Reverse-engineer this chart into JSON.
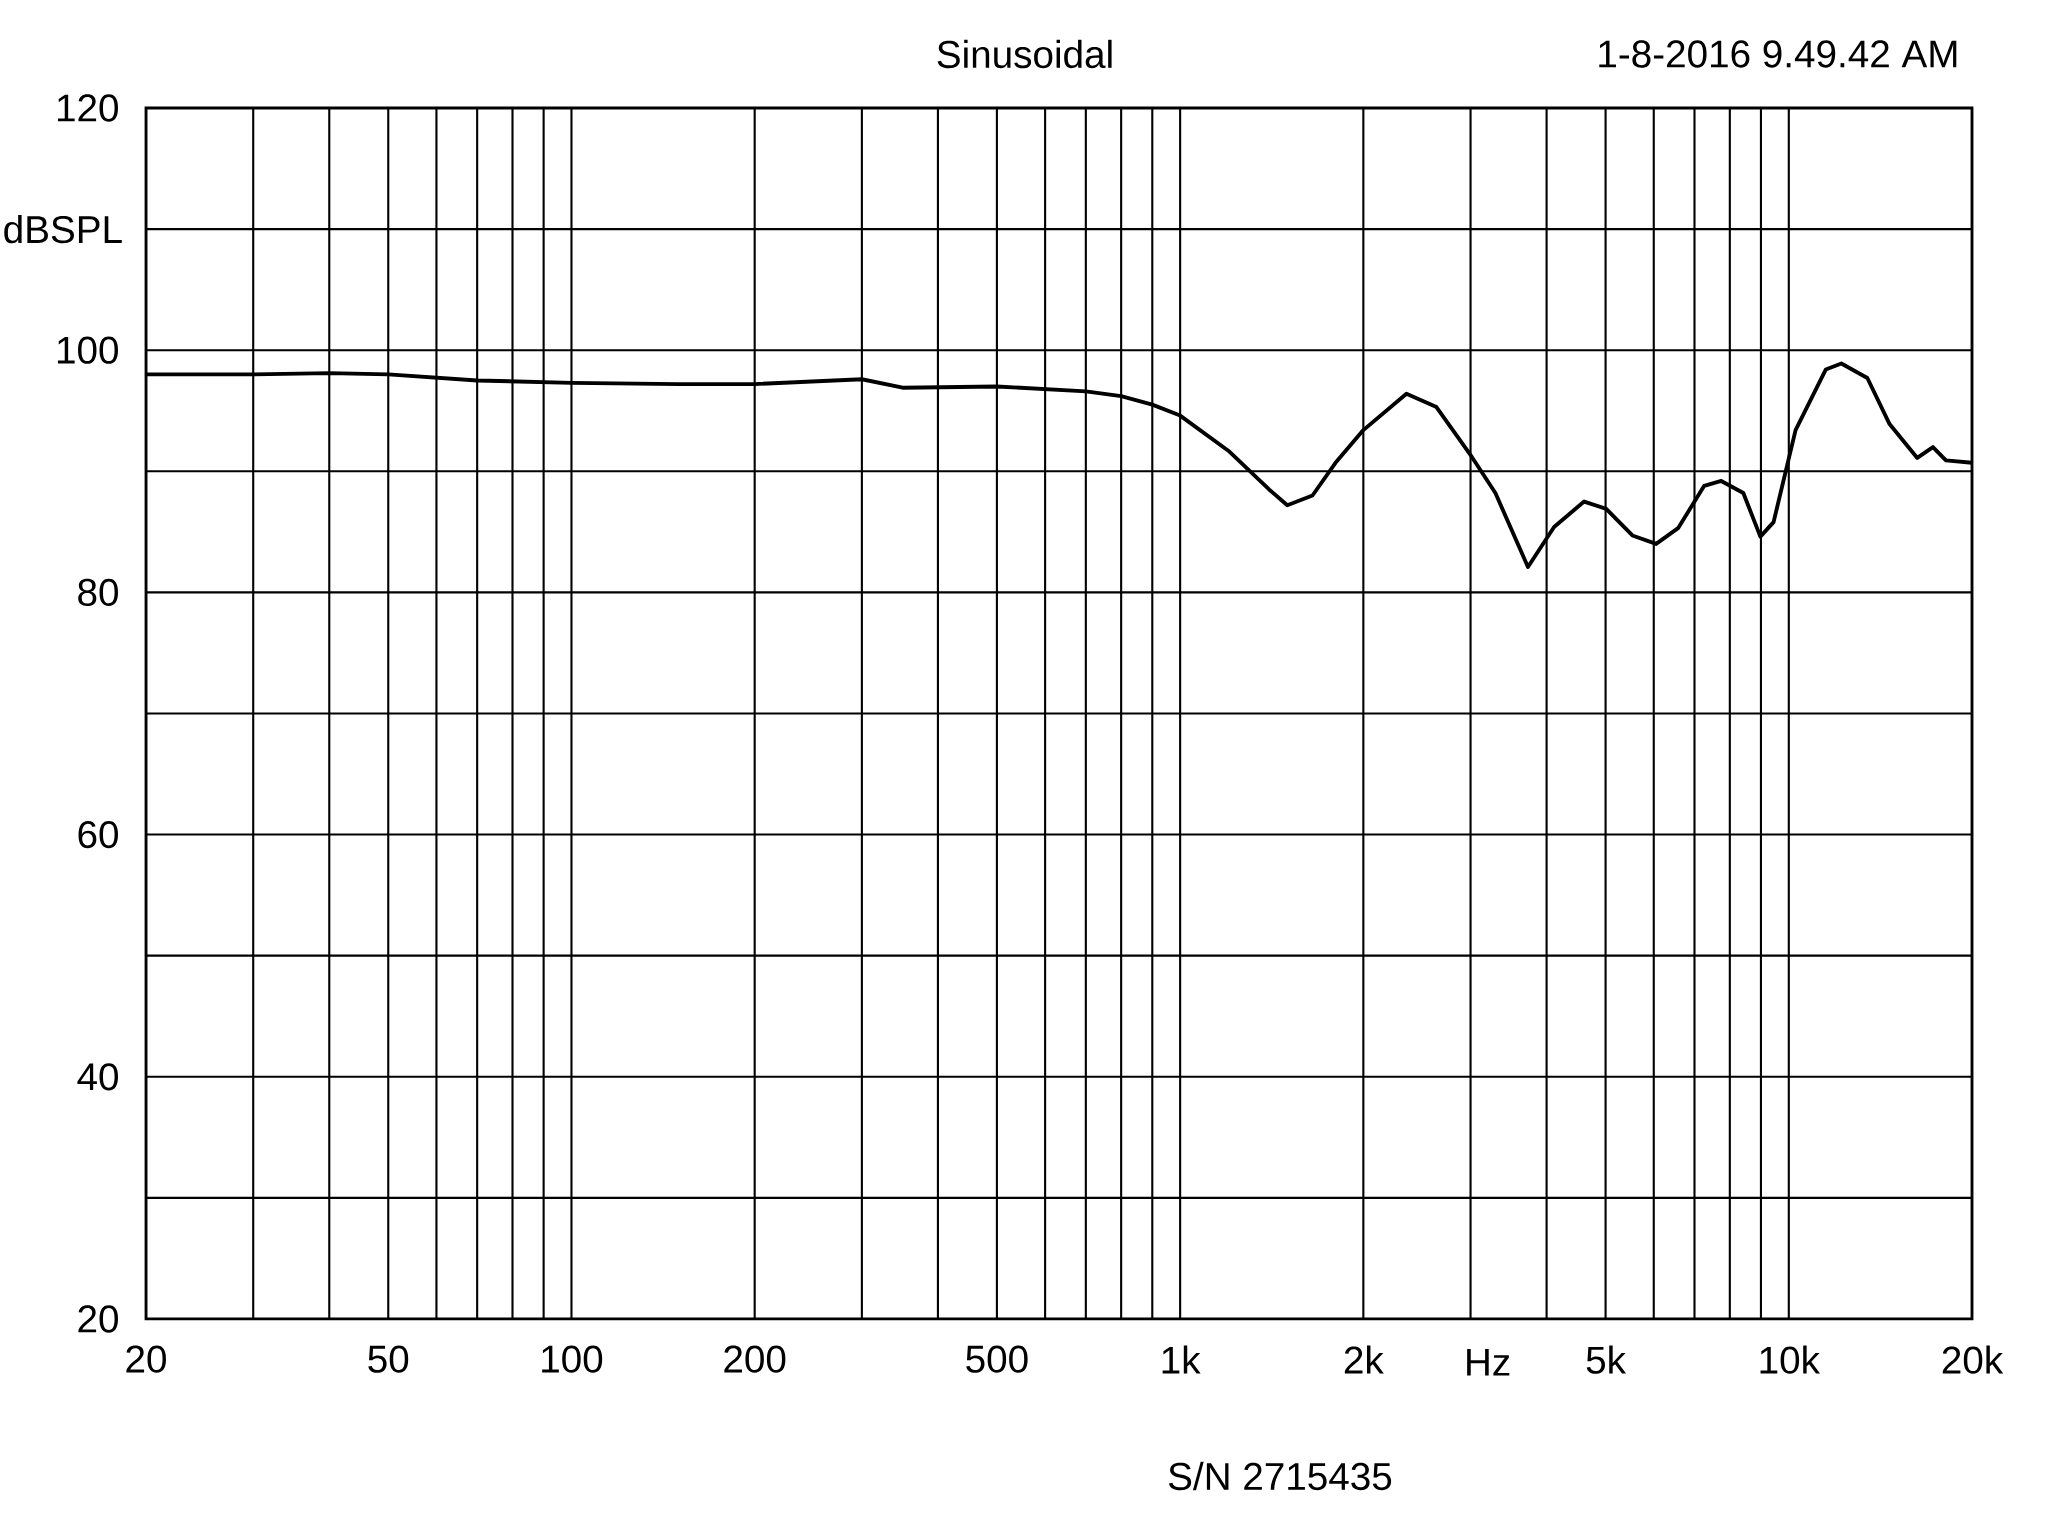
{
  "chart_data": {
    "type": "line",
    "title": "Sinusoidal",
    "xlabel": "Hz",
    "ylabel": "dBSPL",
    "log": "x",
    "grid": true,
    "marker": "none",
    "line_style": "solid",
    "annotations": [
      "1-8-2016 9.49.42 AM",
      "S/N  2715435"
    ],
    "xlim": [
      20,
      20000
    ],
    "ylim": [
      20,
      120
    ],
    "xticks": [
      20,
      {
        "value": 30,
        "label": null
      },
      {
        "value": 40,
        "label": null
      },
      50,
      {
        "value": 60,
        "label": null
      },
      {
        "value": 70,
        "label": null
      },
      {
        "value": 80,
        "label": null
      },
      {
        "value": 90,
        "label": null
      },
      100,
      200,
      {
        "value": 300,
        "label": null
      },
      {
        "value": 400,
        "label": null
      },
      500,
      {
        "value": 600,
        "label": null
      },
      {
        "value": 700,
        "label": null
      },
      {
        "value": 800,
        "label": null
      },
      {
        "value": 900,
        "label": null
      },
      {
        "value": 1000,
        "label": "1k"
      },
      {
        "value": 2000,
        "label": "2k"
      },
      {
        "value": 3000,
        "label": null
      },
      {
        "value": 4000,
        "label": null
      },
      {
        "value": 5000,
        "label": "5k"
      },
      {
        "value": 6000,
        "label": null
      },
      {
        "value": 7000,
        "label": null
      },
      {
        "value": 8000,
        "label": null
      },
      {
        "value": 9000,
        "label": null
      },
      {
        "value": 10000,
        "label": "10k"
      },
      {
        "value": 20000,
        "label": "20k"
      }
    ],
    "yticks": [
      20,
      {
        "value": 30,
        "label": null
      },
      40,
      {
        "value": 50,
        "label": null
      },
      60,
      {
        "value": 70,
        "label": null
      },
      80,
      {
        "value": 90,
        "label": null
      },
      100,
      {
        "value": 110,
        "label": null
      },
      120
    ],
    "series": [
      {
        "color": "#000000",
        "x": [
          20,
          30,
          40,
          50,
          70,
          100,
          150,
          200,
          300,
          350,
          500,
          700,
          800,
          900,
          1000,
          1200,
          1400,
          1500,
          1650,
          1800,
          2000,
          2354,
          2637,
          3013,
          3296,
          3728,
          4115,
          4610,
          5012,
          5534,
          6054,
          6578,
          7262,
          7745,
          8420,
          8980,
          9440,
          10260,
          11500,
          12200,
          13460,
          14640,
          16260,
          17250,
          18120,
          20000
        ],
        "values": [
          98.0,
          98.0,
          98.1,
          98.0,
          97.5,
          97.3,
          97.2,
          97.2,
          97.6,
          96.9,
          97.0,
          96.6,
          96.2,
          95.5,
          94.6,
          91.7,
          88.5,
          87.2,
          88.0,
          90.7,
          93.4,
          96.4,
          95.3,
          91.2,
          88.2,
          82.1,
          85.4,
          87.5,
          86.9,
          84.7,
          84.0,
          85.3,
          88.8,
          89.2,
          88.2,
          84.6,
          85.8,
          93.4,
          98.4,
          98.9,
          97.7,
          93.9,
          91.1,
          92.0,
          90.9,
          90.7
        ]
      }
    ]
  }
}
